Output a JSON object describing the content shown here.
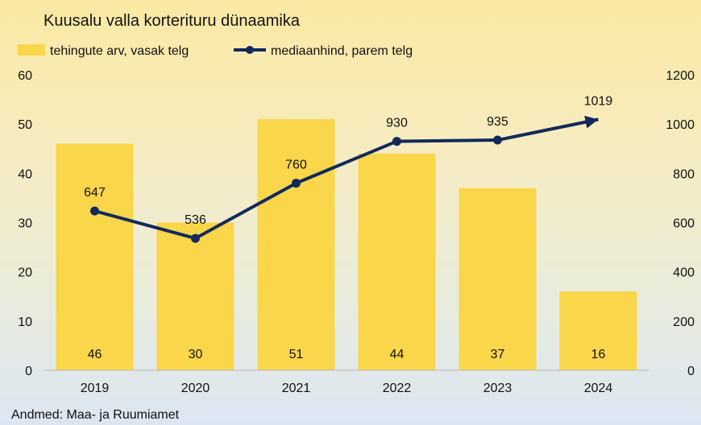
{
  "chart_data": {
    "type": "bar+line",
    "title": "Kuusalu valla korterituru dünaamika",
    "categories": [
      "2019",
      "2020",
      "2021",
      "2022",
      "2023",
      "2024"
    ],
    "series": [
      {
        "name": "tehingute arv, vasak telg",
        "type": "bar",
        "axis": "left",
        "color": "#f9d64a",
        "values": [
          46,
          30,
          51,
          44,
          37,
          16
        ]
      },
      {
        "name": "mediaanhind, parem telg",
        "type": "line",
        "axis": "right",
        "color": "#122a5c",
        "values": [
          647,
          536,
          760,
          930,
          935,
          1019
        ]
      }
    ],
    "y_left": {
      "min": 0,
      "max": 60,
      "step": 10,
      "ticks": [
        "0",
        "10",
        "20",
        "30",
        "40",
        "50",
        "60"
      ]
    },
    "y_right": {
      "min": 0,
      "max": 1200,
      "step": 200,
      "ticks": [
        "0",
        "200",
        "400",
        "600",
        "800",
        "1000",
        "1200"
      ]
    },
    "grid": false,
    "legend_position": "top-left",
    "source": "Andmed: Maa- ja Ruumiamet"
  }
}
